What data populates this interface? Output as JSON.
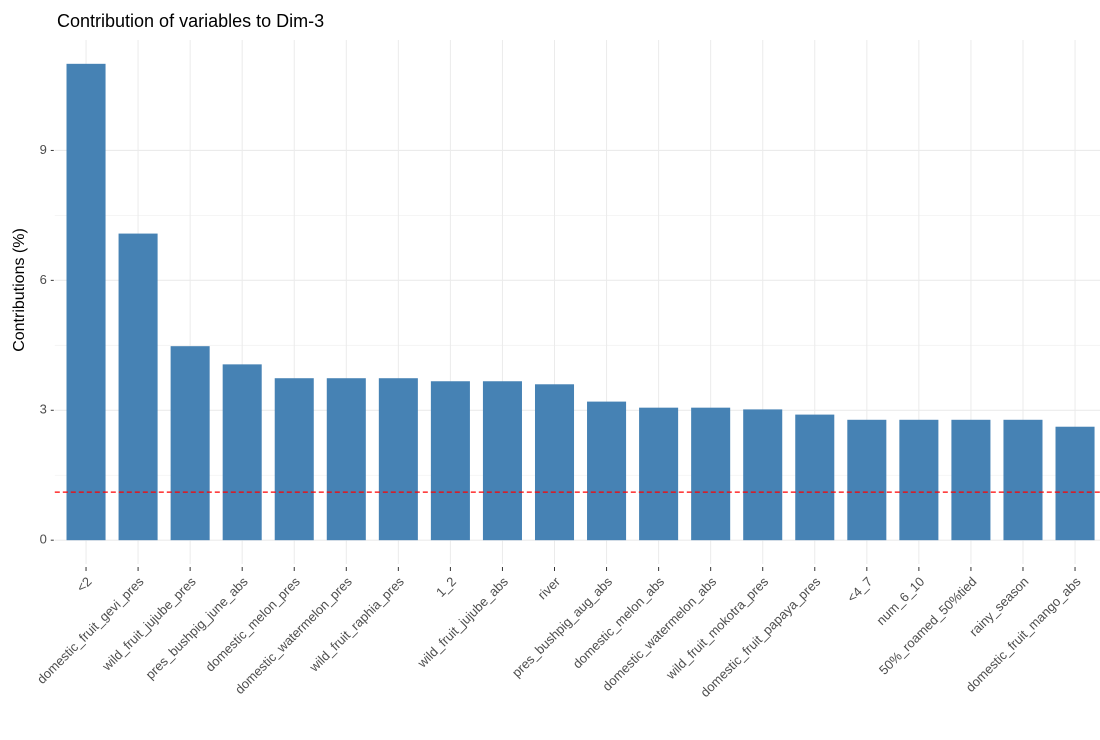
{
  "chart_data": {
    "type": "bar",
    "title": "Contribution of variables to Dim-3",
    "y_label": "Contributions (%)",
    "categories": [
      "<2",
      "domestic_fruit_gevi_pres",
      "wild_fruit_jujube_pres",
      "pres_bushpig_june_abs",
      "domestic_melon_pres",
      "domestic_watermelon_pres",
      "wild_fruit_raphia_pres",
      "1_2",
      "wild_fruit_jujube_abs",
      "river",
      "pres_bushpig_aug_abs",
      "domestic_melon_abs",
      "domestic_watermelon_abs",
      "wild_fruit_mokotra_pres",
      "domestic_fruit_papaya_pres",
      "<4_7",
      "num_6_10",
      "50%_roamed_50%tied",
      "rainy_season",
      "domestic_fruit_mango_abs"
    ],
    "values": [
      11.0,
      7.08,
      4.48,
      4.06,
      3.74,
      3.74,
      3.74,
      3.67,
      3.67,
      3.6,
      3.2,
      3.06,
      3.06,
      3.02,
      2.9,
      2.78,
      2.78,
      2.78,
      2.78,
      2.62
    ],
    "color": "#4682b4",
    "reference_line": {
      "value": 1.11,
      "color": "#ff0000"
    },
    "ylim": [
      -0.55,
      11.55
    ],
    "yticks": [
      0,
      3,
      6,
      9
    ],
    "grid": true
  }
}
